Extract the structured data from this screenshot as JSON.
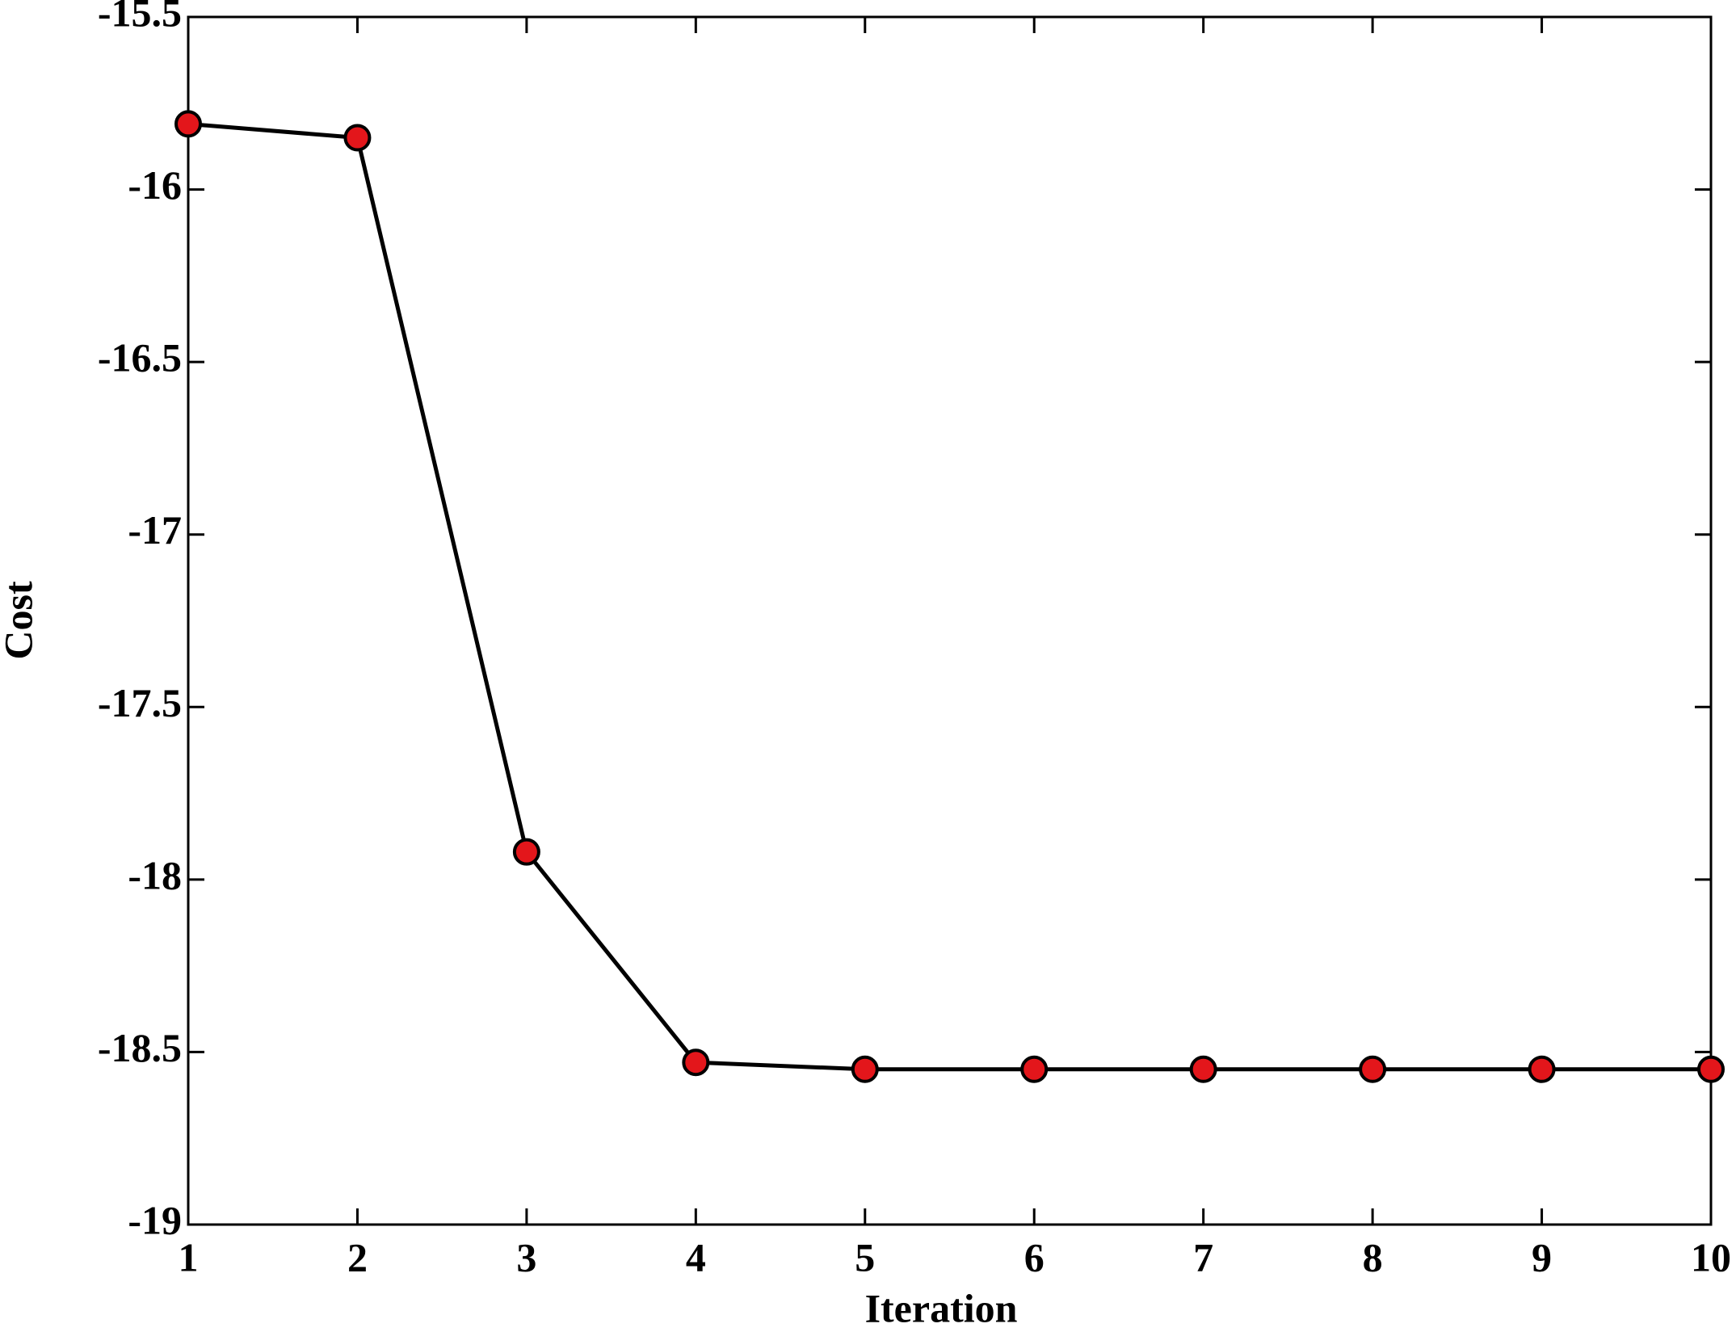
{
  "chart_data": {
    "type": "line",
    "x_label": "Iteration",
    "y_label": "Cost",
    "x": [
      1,
      2,
      3,
      4,
      5,
      6,
      7,
      8,
      9,
      10
    ],
    "series": [
      {
        "color": "#e3161b",
        "values": [
          -15.81,
          -15.85,
          -17.92,
          -18.53,
          -18.55,
          -18.55,
          -18.55,
          -18.55,
          -18.55,
          -18.55
        ]
      }
    ],
    "xlim": [
      1,
      10
    ],
    "xticks": [
      1,
      2,
      3,
      4,
      5,
      6,
      7,
      8,
      9,
      10
    ],
    "ylim": [
      -19,
      -15.5
    ],
    "yticks": [
      -19,
      -18.5,
      -18,
      -17.5,
      -17,
      -16.5,
      -16,
      -15.5
    ]
  }
}
